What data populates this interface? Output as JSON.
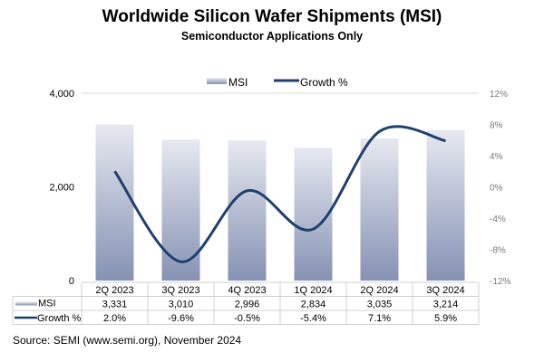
{
  "chart_data": {
    "type": "bar+line",
    "title": "Worldwide Silicon Wafer Shipments (MSI)",
    "subtitle": "Semiconductor Applications Only",
    "categories": [
      "2Q 2023",
      "3Q 2023",
      "4Q 2023",
      "1Q 2024",
      "2Q 2024",
      "3Q 2024"
    ],
    "series": [
      {
        "name": "MSI",
        "type": "bar",
        "axis": "left",
        "values": [
          3331,
          3010,
          2996,
          2834,
          3035,
          3214
        ],
        "labels": [
          "3,331",
          "3,010",
          "2,996",
          "2,834",
          "3,035",
          "3,214"
        ]
      },
      {
        "name": "Growth %",
        "type": "line",
        "axis": "right",
        "values": [
          2.0,
          -9.6,
          -0.5,
          -5.4,
          7.1,
          5.9
        ],
        "labels": [
          "2.0%",
          "-9.6%",
          "-0.5%",
          "-5.4%",
          "7.1%",
          "5.9%"
        ]
      }
    ],
    "left_axis": {
      "ylim": [
        0,
        4000
      ],
      "ticks": [
        0,
        2000,
        4000
      ],
      "tick_labels": [
        "0",
        "2,000",
        "4,000"
      ]
    },
    "right_axis": {
      "ylim": [
        -12,
        12
      ],
      "ticks": [
        -12,
        -8,
        -4,
        0,
        4,
        8,
        12
      ],
      "tick_labels": [
        "-12%",
        "-8%",
        "-4%",
        "0%",
        "4%",
        "8%",
        "12%"
      ]
    },
    "legend": "top-center",
    "grid": "horizontal at 4,000 only",
    "colors": {
      "bar_top": "#e6e9f0",
      "bar_bottom": "#8692b4",
      "line": "#1f3f6e"
    },
    "data_table": true
  },
  "source": "Source: SEMI (www.semi.org), November 2024"
}
